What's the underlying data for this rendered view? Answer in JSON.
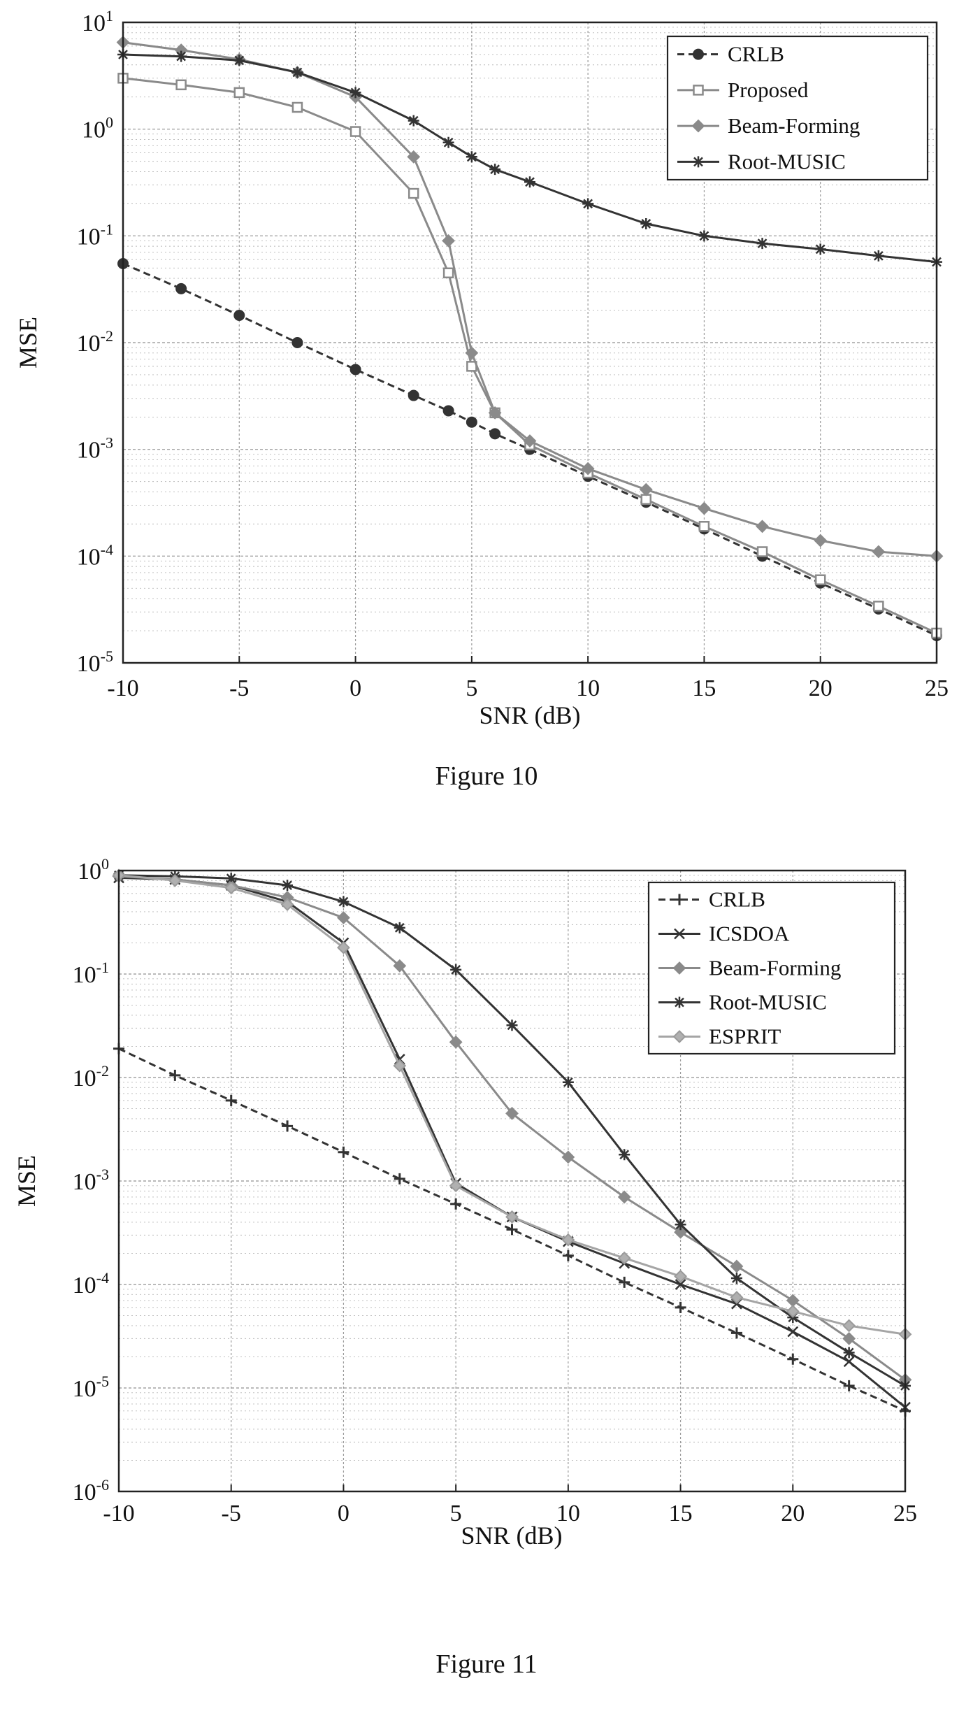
{
  "figures": [
    {
      "caption": "Figure 10"
    },
    {
      "caption": "Figure 11"
    }
  ],
  "colors": {
    "axis": "#222222",
    "grid": "#9a9a9a",
    "line": "#333333",
    "marker_dark": "#333333",
    "marker_light": "#8a8a8a"
  },
  "chart_data": [
    {
      "type": "line",
      "xlabel": "SNR (dB)",
      "ylabel": "MSE",
      "xlim": [
        -10,
        25
      ],
      "ylim": [
        1e-05,
        10
      ],
      "yscale": "log",
      "grid": true,
      "legend_position": "top-right",
      "x_ticks": [
        "-10",
        "-5",
        "0",
        "5",
        "10",
        "15",
        "20",
        "25"
      ],
      "y_ticks": [
        {
          "base": "10",
          "exp": "1"
        },
        {
          "base": "10",
          "exp": "0"
        },
        {
          "base": "10",
          "exp": "-1"
        },
        {
          "base": "10",
          "exp": "-2"
        },
        {
          "base": "10",
          "exp": "-3"
        },
        {
          "base": "10",
          "exp": "-4"
        },
        {
          "base": "10",
          "exp": "-5"
        }
      ],
      "x": [
        -10,
        -7.5,
        -5,
        -2.5,
        0,
        2.5,
        4,
        5,
        6,
        7.5,
        10,
        12.5,
        15,
        17.5,
        20,
        22.5,
        25
      ],
      "series": [
        {
          "name": "CRLB",
          "marker": "dot",
          "style": "dashed",
          "values": [
            0.055,
            0.032,
            0.018,
            0.01,
            0.0056,
            0.0032,
            0.0023,
            0.0018,
            0.0014,
            0.001,
            0.00056,
            0.00032,
            0.00018,
            0.0001,
            5.6e-05,
            3.2e-05,
            1.8e-05
          ]
        },
        {
          "name": "Proposed",
          "marker": "square",
          "style": "solid",
          "values": [
            3.0,
            2.6,
            2.2,
            1.6,
            0.95,
            0.25,
            0.045,
            0.006,
            0.0022,
            0.0011,
            0.0006,
            0.00034,
            0.00019,
            0.00011,
            6e-05,
            3.4e-05,
            1.9e-05
          ]
        },
        {
          "name": "Beam-Forming",
          "marker": "diamond",
          "style": "solid",
          "values": [
            6.5,
            5.5,
            4.5,
            3.4,
            2.0,
            0.55,
            0.09,
            0.008,
            0.0022,
            0.0012,
            0.00066,
            0.00042,
            0.00028,
            0.00019,
            0.00014,
            0.00011,
            0.0001
          ]
        },
        {
          "name": "Root-MUSIC",
          "marker": "star",
          "style": "solid",
          "values": [
            5.0,
            4.8,
            4.4,
            3.4,
            2.2,
            1.2,
            0.75,
            0.55,
            0.42,
            0.32,
            0.2,
            0.13,
            0.1,
            0.085,
            0.075,
            0.065,
            0.057
          ]
        }
      ]
    },
    {
      "type": "line",
      "xlabel": "SNR (dB)",
      "ylabel": "MSE",
      "xlim": [
        -10,
        25
      ],
      "ylim": [
        1e-06,
        1
      ],
      "yscale": "log",
      "grid": true,
      "legend_position": "top-right",
      "x_ticks": [
        "-10",
        "-5",
        "0",
        "5",
        "10",
        "15",
        "20",
        "25"
      ],
      "y_ticks": [
        {
          "base": "10",
          "exp": "0"
        },
        {
          "base": "10",
          "exp": "-1"
        },
        {
          "base": "10",
          "exp": "-2"
        },
        {
          "base": "10",
          "exp": "-3"
        },
        {
          "base": "10",
          "exp": "-4"
        },
        {
          "base": "10",
          "exp": "-5"
        },
        {
          "base": "10",
          "exp": "-6"
        }
      ],
      "x": [
        -10,
        -7.5,
        -5,
        -2.5,
        0,
        2.5,
        5,
        7.5,
        10,
        12.5,
        15,
        17.5,
        20,
        22.5,
        25
      ],
      "series": [
        {
          "name": "CRLB",
          "marker": "plus",
          "style": "dashed",
          "values": [
            0.019,
            0.0105,
            0.006,
            0.0034,
            0.0019,
            0.00105,
            0.0006,
            0.00034,
            0.00019,
            0.000105,
            6e-05,
            3.4e-05,
            1.9e-05,
            1.05e-05,
            6e-06
          ]
        },
        {
          "name": "ICSDOA",
          "marker": "x",
          "style": "solid",
          "values": [
            0.85,
            0.82,
            0.72,
            0.5,
            0.2,
            0.015,
            0.00095,
            0.00045,
            0.00026,
            0.00016,
            0.0001,
            6.5e-05,
            3.5e-05,
            1.8e-05,
            6.5e-06
          ]
        },
        {
          "name": "Beam-Forming",
          "marker": "diamond",
          "style": "solid",
          "values": [
            0.88,
            0.82,
            0.72,
            0.55,
            0.35,
            0.12,
            0.022,
            0.0045,
            0.0017,
            0.0007,
            0.00032,
            0.00015,
            7e-05,
            3e-05,
            1.2e-05
          ]
        },
        {
          "name": "Root-MUSIC",
          "marker": "star",
          "style": "solid",
          "values": [
            0.9,
            0.88,
            0.84,
            0.72,
            0.5,
            0.28,
            0.11,
            0.032,
            0.009,
            0.0018,
            0.00038,
            0.000115,
            4.8e-05,
            2.2e-05,
            1.05e-05
          ]
        },
        {
          "name": "ESPRIT",
          "marker": "diamond-light",
          "style": "solid",
          "values": [
            0.9,
            0.8,
            0.68,
            0.47,
            0.18,
            0.013,
            0.0009,
            0.00045,
            0.00027,
            0.00018,
            0.00012,
            7.5e-05,
            5.5e-05,
            4e-05,
            3.3e-05
          ]
        }
      ]
    }
  ]
}
